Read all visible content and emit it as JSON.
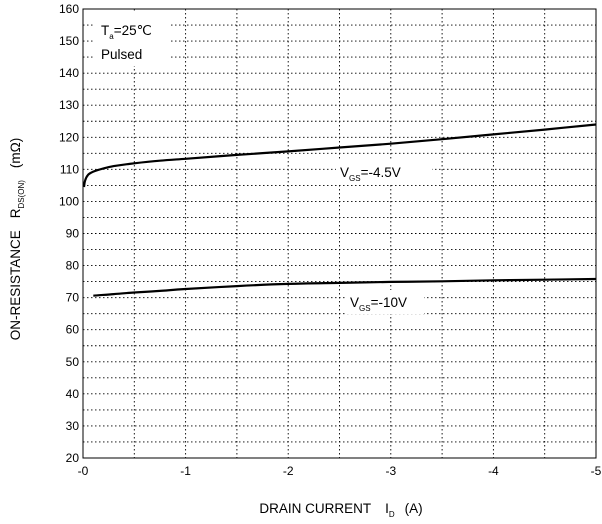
{
  "chart_data": {
    "type": "line",
    "title": "",
    "xlabel": {
      "main": "DRAIN CURRENT",
      "symbol": "I",
      "subscript": "D",
      "unit": "(A)"
    },
    "ylabel": {
      "main": "ON-RESISTANCE",
      "symbol": "R",
      "subscript": "DS(ON)",
      "unit": "(mΩ)"
    },
    "xlim": [
      0,
      -5
    ],
    "ylim": [
      20,
      160
    ],
    "x_ticks": [
      {
        "value": 0,
        "label": "-0"
      },
      {
        "value": -1,
        "label": "-1"
      },
      {
        "value": -2,
        "label": "-2"
      },
      {
        "value": -3,
        "label": "-3"
      },
      {
        "value": -4,
        "label": "-4"
      },
      {
        "value": -5,
        "label": "-5"
      }
    ],
    "y_ticks": [
      {
        "value": 20,
        "label": "20"
      },
      {
        "value": 30,
        "label": "30"
      },
      {
        "value": 40,
        "label": "40"
      },
      {
        "value": 50,
        "label": "50"
      },
      {
        "value": 60,
        "label": "60"
      },
      {
        "value": 70,
        "label": "70"
      },
      {
        "value": 80,
        "label": "80"
      },
      {
        "value": 90,
        "label": "90"
      },
      {
        "value": 100,
        "label": "100"
      },
      {
        "value": 110,
        "label": "110"
      },
      {
        "value": 120,
        "label": "120"
      },
      {
        "value": 130,
        "label": "130"
      },
      {
        "value": 140,
        "label": "140"
      },
      {
        "value": 150,
        "label": "150"
      },
      {
        "value": 160,
        "label": "160"
      }
    ],
    "grid": {
      "major_x": [
        -1,
        -2,
        -3,
        -4
      ],
      "minor_x": [
        -0.5,
        -1.5,
        -2.5,
        -3.5,
        -4.5
      ],
      "minor_y_step": 5,
      "style": "dotted"
    },
    "conditions": {
      "symbol": "T",
      "subscript": "a",
      "value": "=25℃",
      "line2": "Pulsed"
    },
    "series": [
      {
        "name": "VGS=-4.5V",
        "label": {
          "symbol": "V",
          "subscript": "GS",
          "value": "=-4.5V"
        },
        "x": [
          -0.01,
          -0.02,
          -0.05,
          -0.1,
          -0.2,
          -0.3,
          -0.5,
          -0.75,
          -1.0,
          -1.5,
          -2.0,
          -2.5,
          -3.0,
          -3.5,
          -4.0,
          -4.5,
          -5.0
        ],
        "y": [
          104.5,
          106.5,
          108.3,
          109.3,
          110.3,
          111.0,
          111.9,
          112.7,
          113.3,
          114.5,
          115.6,
          116.8,
          118.0,
          119.4,
          120.9,
          122.4,
          124.0
        ]
      },
      {
        "name": "VGS=-10V",
        "label": {
          "symbol": "V",
          "subscript": "GS",
          "value": "=-10V"
        },
        "x": [
          -0.1,
          -0.3,
          -0.5,
          -0.75,
          -1.0,
          -1.5,
          -2.0,
          -2.5,
          -3.0,
          -3.5,
          -4.0,
          -4.5,
          -5.0
        ],
        "y": [
          70.6,
          71.1,
          71.6,
          72.1,
          72.7,
          73.6,
          74.3,
          74.6,
          74.9,
          75.1,
          75.4,
          75.6,
          75.8
        ]
      }
    ]
  }
}
